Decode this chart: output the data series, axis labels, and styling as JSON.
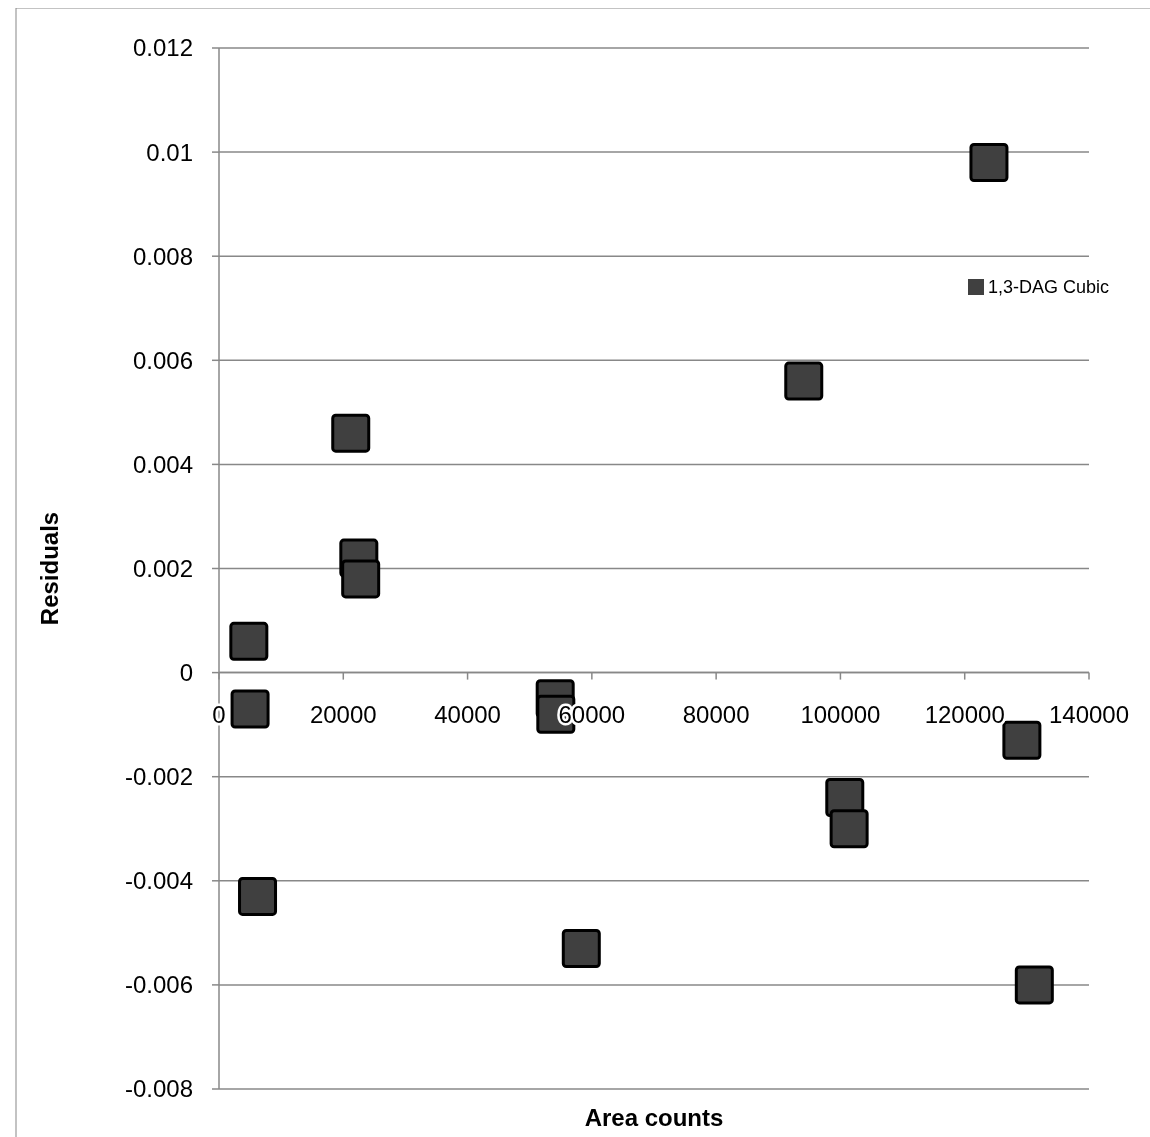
{
  "chart_data": {
    "type": "scatter",
    "xlabel": "Area counts",
    "ylabel": "Residuals",
    "xlim": [
      0,
      140000
    ],
    "xticks": [
      0,
      20000,
      40000,
      60000,
      80000,
      100000,
      120000,
      140000
    ],
    "ylim": [
      -0.008,
      0.012
    ],
    "yticks": [
      -0.008,
      -0.006,
      -0.004,
      -0.002,
      0,
      0.002,
      0.004,
      0.006,
      0.008,
      0.01,
      0.012
    ],
    "grid": "y",
    "legend": "right",
    "marker": "square",
    "series": [
      {
        "name": "1,3-DAG Cubic",
        "color": "#404040",
        "x": [
          4800,
          5000,
          6200,
          21200,
          22500,
          22800,
          54100,
          54200,
          58300,
          94100,
          100700,
          101400,
          123900,
          129200,
          131200
        ],
        "values": [
          0.0006,
          -0.0007,
          -0.0043,
          0.0046,
          0.0022,
          0.0018,
          -0.0005,
          -0.0008,
          -0.0053,
          0.0056,
          -0.0024,
          -0.003,
          0.0098,
          -0.0013,
          -0.006
        ]
      }
    ]
  }
}
